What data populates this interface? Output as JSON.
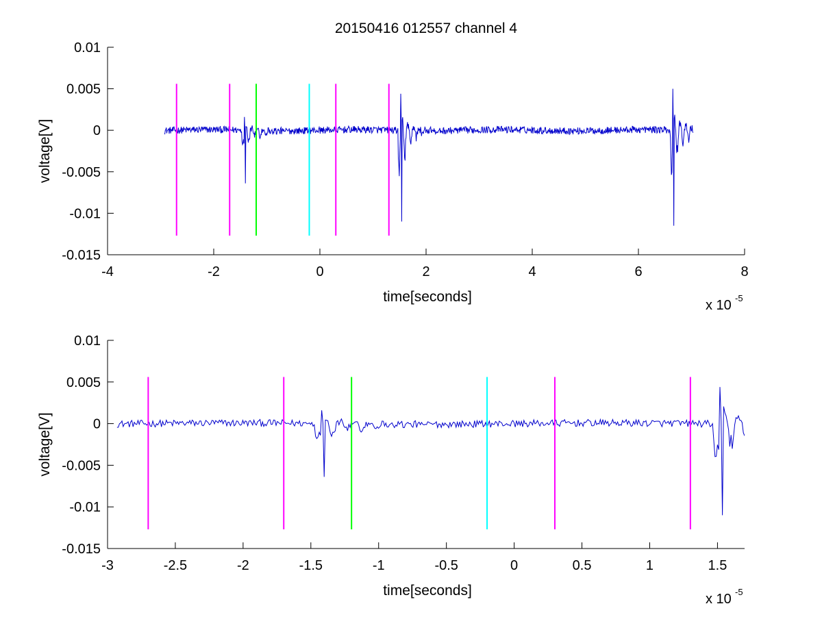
{
  "figure": {
    "title": "20150416 012557 channel 4"
  },
  "chart_data": [
    {
      "type": "line",
      "title": "20150416 012557 channel 4",
      "xlabel": "time[seconds]",
      "ylabel": "voltage[V]",
      "x_multiplier_label": "x 10",
      "x_multiplier_exponent": "-5",
      "xlim": [
        -4,
        8
      ],
      "ylim": [
        -0.015,
        0.01
      ],
      "xticks": [
        -4,
        -2,
        0,
        2,
        4,
        6,
        8
      ],
      "xtick_labels": [
        "-4",
        "-2",
        "0",
        "2",
        "4",
        "6",
        "8"
      ],
      "yticks": [
        -0.015,
        -0.01,
        -0.005,
        0,
        0.005,
        0.01
      ],
      "ytick_labels": [
        "-0.015",
        "-0.01",
        "-0.005",
        "0",
        "0.005",
        "0.01"
      ],
      "grid": false,
      "signal": {
        "color": "#0000cc",
        "x_start": -2.93,
        "x_end": 7.03,
        "bursts": [
          {
            "x": -1.42,
            "peak_min": -0.0064,
            "peak_max": 0.0016
          },
          {
            "x": 1.52,
            "peak_min": -0.011,
            "peak_max": 0.0044
          },
          {
            "x": 6.65,
            "peak_min": -0.0115,
            "peak_max": 0.005
          }
        ]
      },
      "markers": [
        {
          "x": -2.7,
          "color": "#ff00ff",
          "y_top": 0.0056,
          "y_bottom": -0.0127
        },
        {
          "x": -1.7,
          "color": "#ff00ff",
          "y_top": 0.0056,
          "y_bottom": -0.0127
        },
        {
          "x": -1.2,
          "color": "#00ff00",
          "y_top": 0.0056,
          "y_bottom": -0.0127
        },
        {
          "x": -0.2,
          "color": "#00ffff",
          "y_top": 0.0056,
          "y_bottom": -0.0127
        },
        {
          "x": 0.3,
          "color": "#ff00ff",
          "y_top": 0.0056,
          "y_bottom": -0.0127
        },
        {
          "x": 1.3,
          "color": "#ff00ff",
          "y_top": 0.0056,
          "y_bottom": -0.0127
        }
      ]
    },
    {
      "type": "line",
      "title": "",
      "xlabel": "time[seconds]",
      "ylabel": "voltage[V]",
      "x_multiplier_label": "x 10",
      "x_multiplier_exponent": "-5",
      "xlim": [
        -3.0,
        1.7
      ],
      "ylim": [
        -0.015,
        0.01
      ],
      "xticks": [
        -3,
        -2.5,
        -2,
        -1.5,
        -1,
        -0.5,
        0,
        0.5,
        1,
        1.5
      ],
      "xtick_labels": [
        "-3",
        "-2.5",
        "-2",
        "-1.5",
        "-1",
        "-0.5",
        "0",
        "0.5",
        "1",
        "1.5"
      ],
      "yticks": [
        -0.015,
        -0.01,
        -0.005,
        0,
        0.005,
        0.01
      ],
      "ytick_labels": [
        "-0.015",
        "-0.01",
        "-0.005",
        "0",
        "0.005",
        "0.01"
      ],
      "grid": false,
      "signal": {
        "color": "#0000cc",
        "x_start": -2.93,
        "x_end": 1.7,
        "bursts": [
          {
            "x": -1.42,
            "peak_min": -0.0064,
            "peak_max": 0.0016
          },
          {
            "x": 1.52,
            "peak_min": -0.011,
            "peak_max": 0.0044
          }
        ]
      },
      "markers": [
        {
          "x": -2.7,
          "color": "#ff00ff",
          "y_top": 0.0056,
          "y_bottom": -0.0127
        },
        {
          "x": -1.7,
          "color": "#ff00ff",
          "y_top": 0.0056,
          "y_bottom": -0.0127
        },
        {
          "x": -1.2,
          "color": "#00ff00",
          "y_top": 0.0056,
          "y_bottom": -0.0127
        },
        {
          "x": -0.2,
          "color": "#00ffff",
          "y_top": 0.0056,
          "y_bottom": -0.0127
        },
        {
          "x": 0.3,
          "color": "#ff00ff",
          "y_top": 0.0056,
          "y_bottom": -0.0127
        },
        {
          "x": 1.3,
          "color": "#ff00ff",
          "y_top": 0.0056,
          "y_bottom": -0.0127
        }
      ]
    }
  ]
}
